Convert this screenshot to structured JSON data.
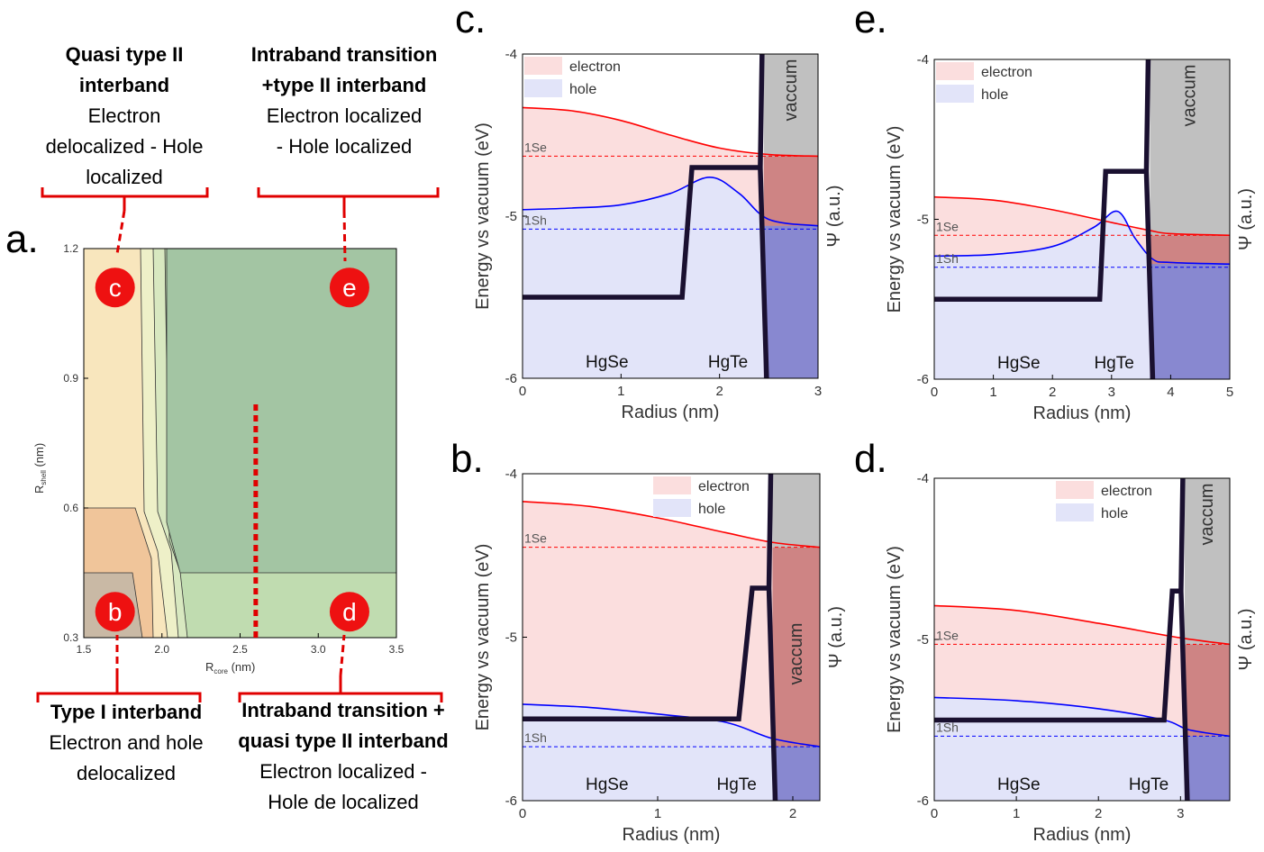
{
  "panels": {
    "a": {
      "letter": "a.",
      "xlabel": "R",
      "xlabel_sub": "core",
      "xlabel_unit": " (nm)",
      "ylabel": "R",
      "ylabel_sub": "shell",
      "ylabel_unit": " (nm)",
      "markers": [
        "b",
        "c",
        "d",
        "e"
      ],
      "regions": {
        "colors": [
          "#c9b9a5",
          "#f0c59a",
          "#f8e6bd",
          "#eef0c8",
          "#d8e8c0",
          "#c0dcb0",
          "#a3c5a3"
        ]
      },
      "dotted_line_color": "#e00000"
    },
    "b": {
      "letter": "b."
    },
    "c": {
      "letter": "c."
    },
    "d": {
      "letter": "d."
    },
    "e": {
      "letter": "e."
    }
  },
  "annotations": {
    "c": {
      "title": "Quasi type II interband",
      "lines": [
        "Electron",
        "delocalized - Hole",
        "localized"
      ]
    },
    "e": {
      "title": "Intraband transition +type II interband",
      "lines": [
        "Electron localized",
        "- Hole localized"
      ]
    },
    "b": {
      "title": "Type I interband",
      "lines": [
        "Electron and hole",
        "delocalized"
      ]
    },
    "d": {
      "title": "Intraband transition + quasi type II interband",
      "lines": [
        "Electron localized -",
        "Hole de localized"
      ]
    }
  },
  "band_plot_common": {
    "ylabel": "Energy vs vacuum (eV)",
    "xlabel": "Radius (nm)",
    "y2label": "Ψ (a.u.)",
    "legend": [
      "electron",
      "hole"
    ],
    "core_label": "HgSe",
    "shell_label": "HgTe",
    "vacuum_label": "vaccum",
    "level_labels": [
      "1Se",
      "1Sh"
    ],
    "colors": {
      "electron": "#ff0000",
      "hole": "#0000ff",
      "electron_fill": "#fbdede",
      "hole_fill": "#e2e4f9",
      "vacuum": "#c0c0c0",
      "band_edge": "#000000"
    }
  },
  "chart_data": [
    {
      "id": "a",
      "type": "heatmap",
      "xlabel": "R_core (nm)",
      "ylabel": "R_shell (nm)",
      "xlim": [
        1.5,
        3.5
      ],
      "ylim": [
        0.3,
        1.2
      ],
      "xticks": [
        "1.5",
        "2.0",
        "2.5",
        "3.0",
        "3.5"
      ],
      "yticks": [
        "0.3",
        "0.6",
        "0.9",
        "1.2"
      ],
      "markers": [
        {
          "label": "b",
          "x": 1.7,
          "y": 0.36
        },
        {
          "label": "c",
          "x": 1.7,
          "y": 1.11
        },
        {
          "label": "d",
          "x": 3.2,
          "y": 0.36
        },
        {
          "label": "e",
          "x": 3.2,
          "y": 1.11
        }
      ],
      "dotted_line": {
        "x": 2.6,
        "y": [
          0.3,
          0.84
        ]
      }
    },
    {
      "id": "c",
      "type": "line",
      "xlim": [
        0,
        3
      ],
      "ylim": [
        -6,
        -4
      ],
      "xticks": [
        "0",
        "1",
        "2",
        "3"
      ],
      "yticks": [
        "-6",
        "-5",
        "-4"
      ],
      "x_interface": 2.45,
      "x_vacuum": 2.45,
      "band": {
        "core": -5.5,
        "step_start": 1.62,
        "step_end": 1.72,
        "shell": -4.7
      },
      "level_1Se": -4.63,
      "level_1Sh": -5.08,
      "electron": {
        "x": [
          0,
          0.5,
          1.0,
          1.5,
          2.0,
          2.5,
          3.0
        ],
        "y": [
          -4.33,
          -4.35,
          -4.41,
          -4.5,
          -4.58,
          -4.62,
          -4.63
        ]
      },
      "hole": {
        "x": [
          0,
          0.5,
          1.0,
          1.5,
          1.9,
          2.2,
          2.5,
          3.0
        ],
        "y": [
          -4.96,
          -4.95,
          -4.93,
          -4.86,
          -4.76,
          -4.86,
          -5.02,
          -5.06
        ]
      }
    },
    {
      "id": "e",
      "type": "line",
      "xlim": [
        0,
        5
      ],
      "ylim": [
        -6,
        -4
      ],
      "xticks": [
        "0",
        "1",
        "2",
        "3",
        "4",
        "5"
      ],
      "yticks": [
        "-6",
        "-5",
        "-4"
      ],
      "x_interface": 3.65,
      "x_vacuum": 3.65,
      "band": {
        "core": -5.5,
        "step_start": 2.8,
        "step_end": 2.9,
        "shell": -4.7
      },
      "level_1Se": -5.1,
      "level_1Sh": -5.3,
      "electron": {
        "x": [
          0,
          1,
          2,
          3,
          3.65,
          4,
          5
        ],
        "y": [
          -4.86,
          -4.88,
          -4.94,
          -5.02,
          -5.07,
          -5.09,
          -5.1
        ]
      },
      "hole": {
        "x": [
          0,
          1,
          2,
          2.7,
          3.1,
          3.4,
          3.7,
          4,
          5
        ],
        "y": [
          -5.23,
          -5.22,
          -5.17,
          -5.05,
          -4.95,
          -5.12,
          -5.25,
          -5.27,
          -5.28
        ]
      }
    },
    {
      "id": "b",
      "type": "line",
      "xlim": [
        0,
        2.2
      ],
      "ylim": [
        -6,
        -4
      ],
      "xticks": [
        "0",
        "1",
        "2"
      ],
      "yticks": [
        "-6",
        "-5",
        "-4"
      ],
      "x_interface": 1.85,
      "x_vacuum": 1.85,
      "band": {
        "core": -5.5,
        "step_start": 1.6,
        "step_end": 1.7,
        "shell": -4.7
      },
      "level_1Se": -4.45,
      "level_1Sh": -5.67,
      "electron": {
        "x": [
          0,
          0.5,
          1.0,
          1.5,
          1.85,
          2.2
        ],
        "y": [
          -4.17,
          -4.2,
          -4.27,
          -4.36,
          -4.42,
          -4.45
        ]
      },
      "hole": {
        "x": [
          0,
          0.5,
          1.0,
          1.5,
          1.85,
          2.2
        ],
        "y": [
          -5.41,
          -5.43,
          -5.47,
          -5.52,
          -5.62,
          -5.67
        ]
      }
    },
    {
      "id": "d",
      "type": "line",
      "xlim": [
        0,
        3.6
      ],
      "ylim": [
        -6,
        -4
      ],
      "xticks": [
        "0",
        "1",
        "2",
        "3"
      ],
      "yticks": [
        "-6",
        "-5",
        "-4"
      ],
      "x_interface": 3.05,
      "x_vacuum": 3.05,
      "band": {
        "core": -5.5,
        "step_start": 2.8,
        "step_end": 2.9,
        "shell": -4.7
      },
      "level_1Se": -5.03,
      "level_1Sh": -5.6,
      "electron": {
        "x": [
          0,
          1,
          2,
          3,
          3.6
        ],
        "y": [
          -4.79,
          -4.82,
          -4.9,
          -4.99,
          -5.03
        ]
      },
      "hole": {
        "x": [
          0,
          1,
          2,
          2.8,
          3.1,
          3.6
        ],
        "y": [
          -5.36,
          -5.38,
          -5.43,
          -5.5,
          -5.56,
          -5.6
        ]
      }
    }
  ]
}
